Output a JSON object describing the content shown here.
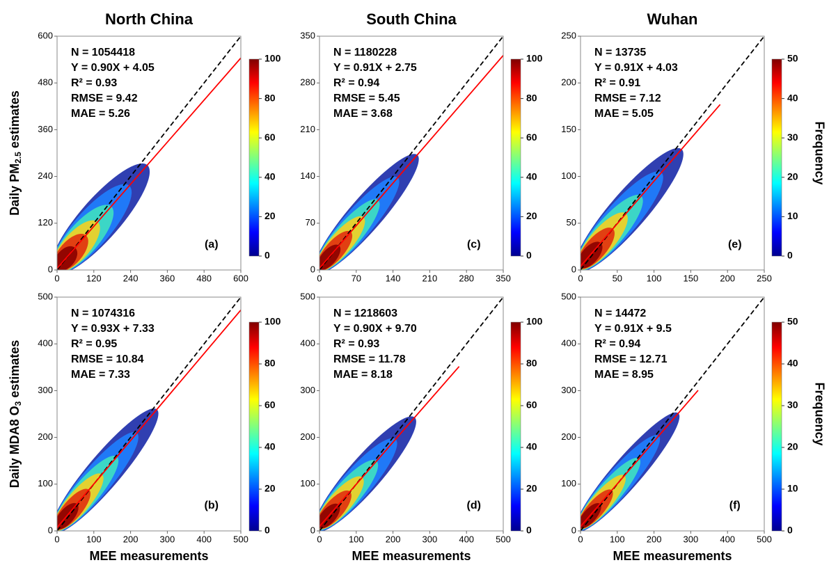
{
  "chart_data": [
    {
      "type": "scatter",
      "title": "North China",
      "label": "(a)",
      "ylabel": {
        "text": "Daily PM",
        "sub": "2.5",
        "after": " estimates"
      },
      "stats": [
        "N = 1054418",
        "Y = 0.90X + 4.05",
        "R² = 0.93",
        "RMSE = 9.42",
        "MAE = 5.26"
      ],
      "fit": {
        "slope": 0.9,
        "intercept": 4.05,
        "x_range": [
          0,
          600
        ]
      },
      "xlim": [
        0,
        600
      ],
      "xticks": [
        0,
        120,
        240,
        360,
        480,
        600
      ],
      "ylim": [
        0,
        600
      ],
      "yticks": [
        0,
        120,
        240,
        360,
        480,
        600
      ],
      "clim": [
        0,
        100
      ],
      "cticks": [
        0,
        20,
        40,
        60,
        80,
        100
      ]
    },
    {
      "type": "scatter",
      "title": "South China",
      "label": "(c)",
      "stats": [
        "N = 1180228",
        "Y = 0.91X + 2.75",
        "R² = 0.94",
        "RMSE = 5.45",
        "MAE = 3.68"
      ],
      "fit": {
        "slope": 0.91,
        "intercept": 2.75,
        "x_range": [
          0,
          350
        ]
      },
      "xlim": [
        0,
        350
      ],
      "xticks": [
        0,
        70,
        140,
        210,
        280,
        350
      ],
      "ylim": [
        0,
        350
      ],
      "yticks": [
        0,
        70,
        140,
        210,
        280,
        350
      ],
      "clim": [
        0,
        100
      ],
      "cticks": [
        0,
        20,
        40,
        60,
        80,
        100
      ]
    },
    {
      "type": "scatter",
      "title": "Wuhan",
      "label": "(e)",
      "colorbar_label": "Frequency",
      "stats": [
        "N = 13735",
        "Y = 0.91X + 4.03",
        "R² = 0.91",
        "RMSE = 7.12",
        "MAE = 5.05"
      ],
      "fit": {
        "slope": 0.91,
        "intercept": 4.03,
        "x_range": [
          0,
          190
        ]
      },
      "xlim": [
        0,
        250
      ],
      "xticks": [
        0,
        50,
        100,
        150,
        200,
        250
      ],
      "ylim": [
        0,
        250
      ],
      "yticks": [
        0,
        50,
        100,
        150,
        200,
        250
      ],
      "clim": [
        0,
        50
      ],
      "cticks": [
        0,
        10,
        20,
        30,
        40,
        50
      ]
    },
    {
      "type": "scatter",
      "label": "(b)",
      "xlabel": "MEE measurements",
      "ylabel": {
        "text": "Daily MDA8 O",
        "sub": "3",
        "after": " estimates"
      },
      "stats": [
        "N = 1074316",
        "Y = 0.93X + 7.33",
        "R² = 0.95",
        "RMSE = 10.84",
        "MAE = 7.33"
      ],
      "fit": {
        "slope": 0.93,
        "intercept": 7.33,
        "x_range": [
          0,
          500
        ]
      },
      "xlim": [
        0,
        500
      ],
      "xticks": [
        0,
        100,
        200,
        300,
        400,
        500
      ],
      "ylim": [
        0,
        500
      ],
      "yticks": [
        0,
        100,
        200,
        300,
        400,
        500
      ],
      "clim": [
        0,
        100
      ],
      "cticks": [
        0,
        20,
        40,
        60,
        80,
        100
      ]
    },
    {
      "type": "scatter",
      "label": "(d)",
      "xlabel": "MEE measurements",
      "stats": [
        "N = 1218603",
        "Y = 0.90X + 9.70",
        "R² = 0.93",
        "RMSE = 11.78",
        "MAE = 8.18"
      ],
      "fit": {
        "slope": 0.9,
        "intercept": 9.7,
        "x_range": [
          0,
          380
        ]
      },
      "xlim": [
        0,
        500
      ],
      "xticks": [
        0,
        100,
        200,
        300,
        400,
        500
      ],
      "ylim": [
        0,
        500
      ],
      "yticks": [
        0,
        100,
        200,
        300,
        400,
        500
      ],
      "clim": [
        0,
        100
      ],
      "cticks": [
        0,
        20,
        40,
        60,
        80,
        100
      ]
    },
    {
      "type": "scatter",
      "label": "(f)",
      "xlabel": "MEE measurements",
      "colorbar_label": "Frequency",
      "stats": [
        "N = 14472",
        "Y = 0.91X + 9.5",
        "R² = 0.94",
        "RMSE = 12.71",
        "MAE = 8.95"
      ],
      "fit": {
        "slope": 0.91,
        "intercept": 9.5,
        "x_range": [
          0,
          320
        ]
      },
      "xlim": [
        0,
        500
      ],
      "xticks": [
        0,
        100,
        200,
        300,
        400,
        500
      ],
      "ylim": [
        0,
        500
      ],
      "yticks": [
        0,
        100,
        200,
        300,
        400,
        500
      ],
      "clim": [
        0,
        50
      ],
      "cticks": [
        0,
        10,
        20,
        30,
        40,
        50
      ]
    }
  ]
}
